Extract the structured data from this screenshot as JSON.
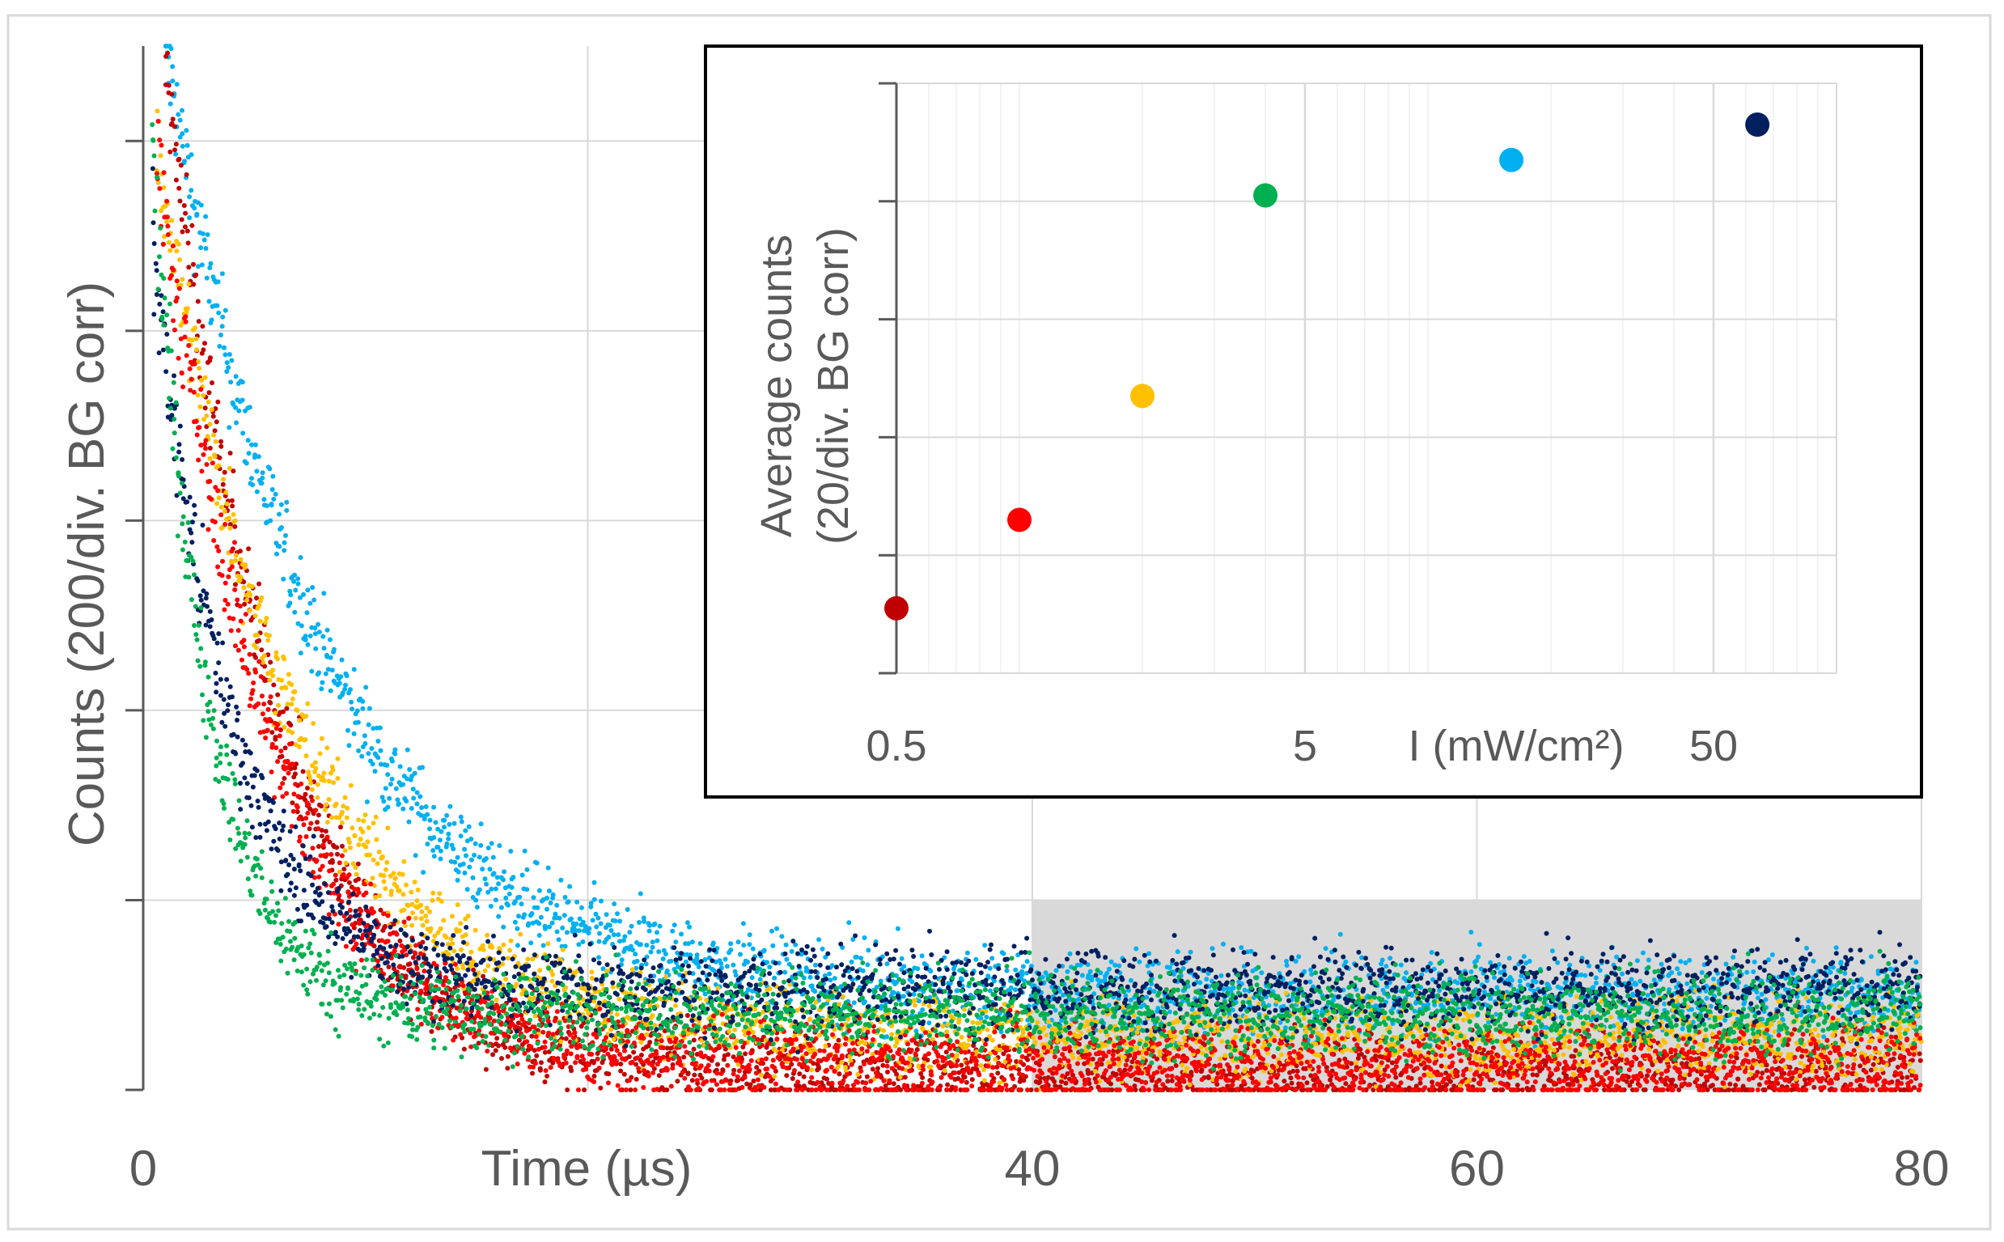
{
  "colors": {
    "dark_red": "#C00000",
    "red": "#FF0000",
    "orange": "#FFC000",
    "green": "#00B050",
    "light_blue": "#00B0F0",
    "navy": "#002060",
    "grid": "#D9D9D9",
    "shade": "#D9D9D9",
    "axis_text": "#595959"
  },
  "chart_data": [
    {
      "type": "scatter",
      "xlabel": "Time (µs)",
      "ylabel": "Counts (200/div. BG corr)",
      "xlim": [
        0,
        80
      ],
      "ylim": [
        0,
        1100
      ],
      "x_ticks": [
        0,
        20,
        40,
        60,
        80
      ],
      "x_tick_labels": [
        "0",
        "",
        "40",
        "60",
        "80"
      ],
      "y_ticks": [
        0,
        200,
        400,
        600,
        800,
        1000
      ],
      "y_tick_labels": [
        "",
        "",
        "",
        "",
        "",
        ""
      ],
      "grid": true,
      "shaded_region": {
        "x": [
          40,
          80
        ],
        "y": [
          0,
          200
        ]
      },
      "series": [
        {
          "color_key": "light_blue",
          "peak_x": 1.0,
          "peak": 1100,
          "tau": 7.0,
          "baseline": 100,
          "noise": 22
        },
        {
          "color_key": "dark_red",
          "peak_x": 1.0,
          "peak": 1100,
          "tau": 4.8,
          "baseline": 20,
          "noise": 22
        },
        {
          "color_key": "orange",
          "peak_x": 0.6,
          "peak": 1000,
          "tau": 6.0,
          "baseline": 55,
          "noise": 22
        },
        {
          "color_key": "red",
          "peak_x": 0.6,
          "peak": 1000,
          "tau": 5.0,
          "baseline": 25,
          "noise": 22
        },
        {
          "color_key": "navy",
          "peak_x": 0.4,
          "peak": 900,
          "tau": 3.5,
          "baseline": 105,
          "noise": 22
        },
        {
          "color_key": "green",
          "peak_x": 0.4,
          "peak": 1000,
          "tau": 2.5,
          "baseline": 80,
          "noise": 22
        }
      ]
    },
    {
      "type": "scatter",
      "xlabel": "I (mW/cm²)",
      "ylabel": "Average counts (20/div. BG corr)",
      "xscale": "log",
      "xlim": [
        0.5,
        100
      ],
      "ylim": [
        0,
        100
      ],
      "x_ticks": [
        0.5,
        5,
        50
      ],
      "x_tick_labels": [
        "0.5",
        "5",
        "50"
      ],
      "y_ticks": [
        0,
        20,
        40,
        60,
        80,
        100
      ],
      "y_tick_labels": [
        "",
        "",
        "",
        "",
        "",
        ""
      ],
      "grid": true,
      "points": [
        {
          "x": 0.5,
          "y": 11,
          "color_key": "dark_red"
        },
        {
          "x": 1.0,
          "y": 26,
          "color_key": "red"
        },
        {
          "x": 2.0,
          "y": 47,
          "color_key": "orange"
        },
        {
          "x": 4.0,
          "y": 81,
          "color_key": "green"
        },
        {
          "x": 16,
          "y": 87,
          "color_key": "light_blue"
        },
        {
          "x": 64,
          "y": 93,
          "color_key": "navy"
        }
      ]
    }
  ]
}
